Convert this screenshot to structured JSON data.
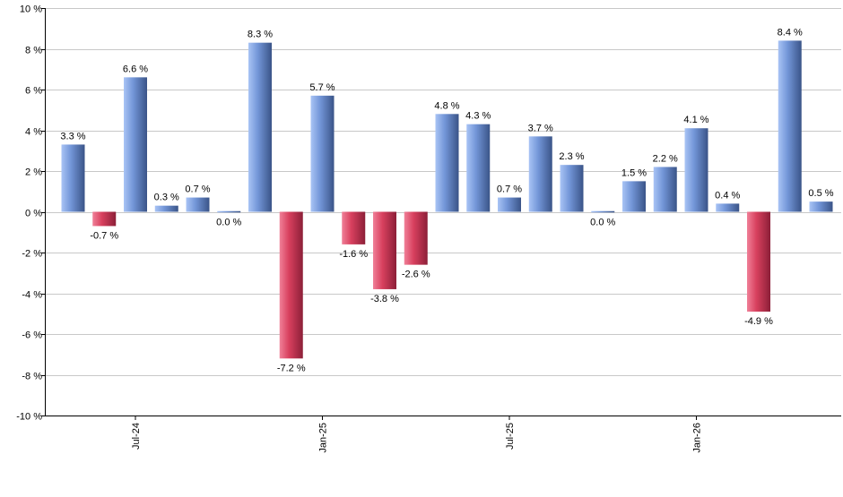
{
  "chart_data": {
    "type": "bar",
    "title": "",
    "xlabel": "",
    "ylabel": "",
    "ylim": [
      -10,
      10
    ],
    "y_ticks": [
      10,
      8,
      6,
      4,
      2,
      0,
      -2,
      -4,
      -6,
      -8,
      -10
    ],
    "y_tick_labels": [
      "10 %",
      "8 %",
      "6 %",
      "4 %",
      "2 %",
      "0 %",
      "-2 %",
      "-4 %",
      "-6 %",
      "-8 %",
      "-10 %"
    ],
    "grid": true,
    "legend": "none",
    "categories": [
      "2024-05",
      "2024-06",
      "2024-07",
      "2024-08",
      "2024-09",
      "2024-10",
      "2024-11",
      "2024-12",
      "2025-01",
      "2025-02",
      "2025-03",
      "2025-04",
      "2025-05",
      "2025-06",
      "2025-07",
      "2025-08",
      "2025-09",
      "2025-10",
      "2025-11",
      "2025-12",
      "2026-01",
      "2026-02",
      "2026-03",
      "2026-04",
      "2026-05"
    ],
    "values": [
      3.3,
      -0.7,
      6.6,
      0.3,
      0.7,
      0.0,
      8.3,
      -7.2,
      5.7,
      -1.6,
      -3.8,
      -2.6,
      4.8,
      4.3,
      0.7,
      3.7,
      2.3,
      0.0,
      1.5,
      2.2,
      4.1,
      0.4,
      -4.9,
      8.4,
      0.5
    ],
    "value_labels": [
      "3.3 %",
      "-0.7 %",
      "6.6 %",
      "0.3 %",
      "0.7 %",
      "0.0 %",
      "8.3 %",
      "-7.2 %",
      "5.7 %",
      "-1.6 %",
      "-3.8 %",
      "-2.6 %",
      "4.8 %",
      "4.3 %",
      "0.7 %",
      "3.7 %",
      "2.3 %",
      "0.0 %",
      "1.5 %",
      "2.2 %",
      "4.1 %",
      "0.4 %",
      "-4.9 %",
      "8.4 %",
      "0.5 %"
    ],
    "x_tick_labels": [
      {
        "category": "2024-07",
        "label": "Jul-24"
      },
      {
        "category": "2025-01",
        "label": "Jan-25"
      },
      {
        "category": "2025-07",
        "label": "Jul-25"
      },
      {
        "category": "2026-01",
        "label": "Jan-26"
      }
    ],
    "colors": {
      "positive_light": "#a9c4f5",
      "positive_mid": "#7396d8",
      "positive_dark": "#3a5488",
      "negative_light": "#f08098",
      "negative_mid": "#d8405e",
      "negative_dark": "#8c1f38",
      "grid": "#c8c8c8",
      "axis": "#000000"
    }
  }
}
